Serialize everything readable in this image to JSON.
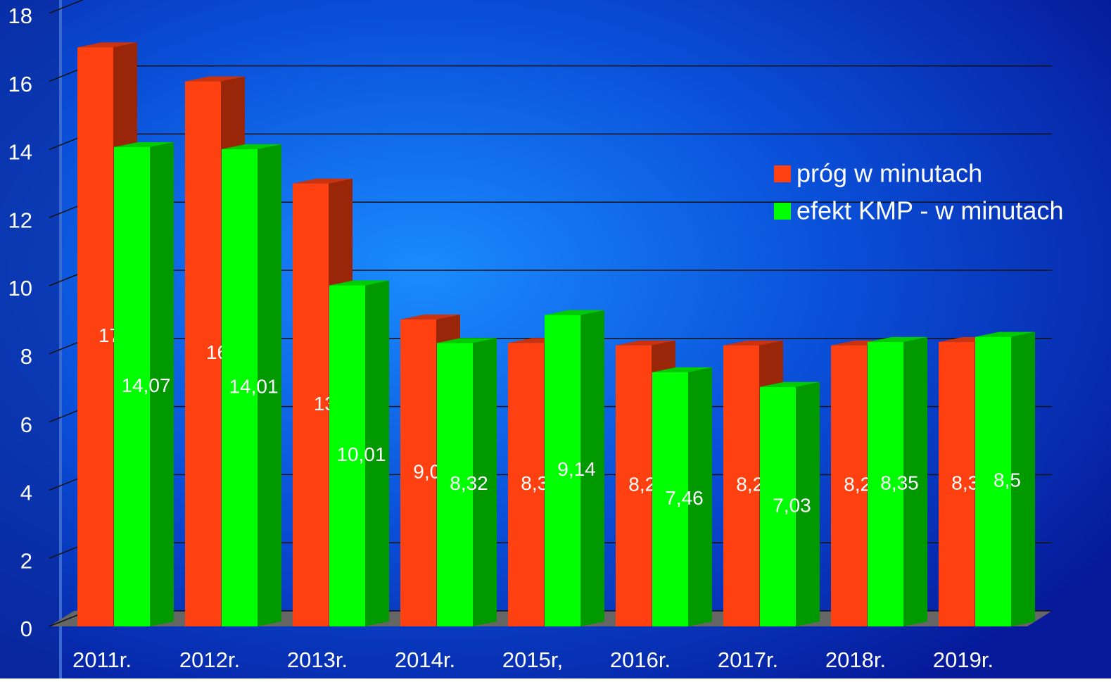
{
  "chart_data": {
    "type": "bar3d",
    "categories": [
      "2011r.",
      "2012r.",
      "2013r.",
      "2014r.",
      "2015r,",
      "2016r.",
      "2017r.",
      "2018r.",
      "2019r."
    ],
    "series": [
      {
        "name": "próg w minutach",
        "color": "#ff4010",
        "values": [
          17,
          16,
          13,
          9.01,
          8.32,
          8.25,
          8.25,
          8.25,
          8.35
        ],
        "value_labels": [
          "17",
          "16",
          "13",
          "9,01",
          "8,32",
          "8,25",
          "8,25",
          "8,25",
          "8,35"
        ]
      },
      {
        "name": "efekt KMP - w minutach",
        "color": "#00ff00",
        "values": [
          14.07,
          14.01,
          10.01,
          8.32,
          9.14,
          7.46,
          7.03,
          8.35,
          8.5
        ],
        "value_labels": [
          "14,07",
          "14,01",
          "10,01",
          "8,32",
          "9,14",
          "7,46",
          "7,03",
          "8,35",
          "8,5"
        ]
      }
    ],
    "ylim": [
      0,
      18
    ],
    "yticks": [
      0,
      2,
      4,
      6,
      8,
      10,
      12,
      14,
      16,
      18
    ],
    "grid": true,
    "legend": "right"
  }
}
